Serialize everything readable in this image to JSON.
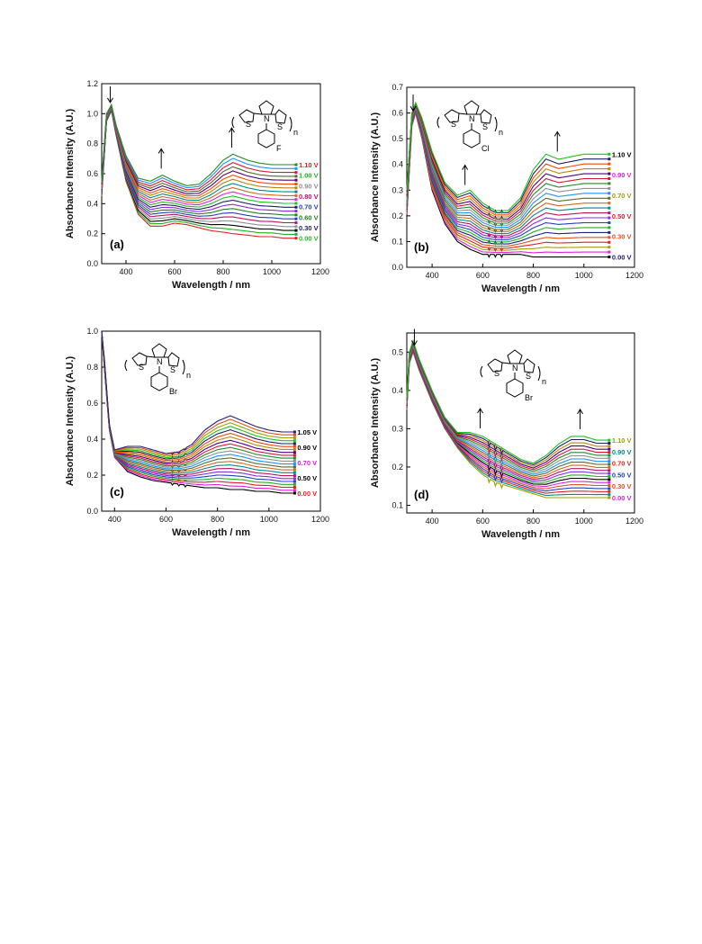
{
  "chart_data": [
    {
      "type": "line",
      "panel_label": "(a)",
      "xlabel": "Wavelength / nm",
      "ylabel": "Absorbance Intensity (A.U.)",
      "xlim": [
        300,
        1200
      ],
      "ylim": [
        0.0,
        1.2
      ],
      "xticks": [
        400,
        600,
        800,
        1000,
        1200
      ],
      "yticks": [
        0.0,
        0.2,
        0.4,
        0.6,
        0.8,
        1.0,
        1.2
      ],
      "grid": false,
      "molecule": {
        "substituent": "F",
        "repeat": "n",
        "atoms": [
          "S",
          "N",
          "S"
        ]
      },
      "voltage_labels": [
        "1.10 V",
        "1.00 V",
        "0.90 V",
        "0.80 V",
        "0.70 V",
        "0.60 V",
        "0.30 V",
        "0.00 V"
      ],
      "voltage_colors": [
        "#e02020",
        "#20b020",
        "#909090",
        "#c01060",
        "#2040c0",
        "#208020",
        "#202060",
        "#20c020"
      ],
      "series_count": 20,
      "series_colors": [
        "#e02020",
        "#20b020",
        "#000000",
        "#909090",
        "#c01060",
        "#2040c0",
        "#208020",
        "#8a2be2",
        "#202060",
        "#20c020",
        "#e020e0",
        "#d2691e",
        "#008b8b",
        "#b8860b",
        "#ff4500",
        "#4b0082",
        "#556b2f",
        "#dc143c",
        "#1e90ff",
        "#228b22"
      ],
      "curve_keypoints": {
        "x": [
          300,
          320,
          340,
          360,
          400,
          450,
          500,
          550,
          600,
          650,
          700,
          750,
          800,
          840,
          900,
          950,
          1000,
          1050,
          1100
        ],
        "y_lowest": [
          0.45,
          0.95,
          1.02,
          0.85,
          0.55,
          0.33,
          0.25,
          0.25,
          0.27,
          0.26,
          0.24,
          0.22,
          0.21,
          0.2,
          0.19,
          0.18,
          0.18,
          0.17,
          0.17
        ],
        "y_highest": [
          0.55,
          1.0,
          1.06,
          0.92,
          0.72,
          0.57,
          0.55,
          0.59,
          0.55,
          0.52,
          0.53,
          0.6,
          0.69,
          0.73,
          0.69,
          0.67,
          0.66,
          0.66,
          0.66
        ]
      },
      "arrows": [
        {
          "x": 335,
          "dir": "down"
        },
        {
          "x": 545,
          "dir": "up"
        },
        {
          "x": 835,
          "dir": "up"
        }
      ]
    },
    {
      "type": "line",
      "panel_label": "(b)",
      "xlabel": "Wavelength / nm",
      "ylabel": "Absorbance Intensity (A.U.)",
      "xlim": [
        300,
        1200
      ],
      "ylim": [
        0.0,
        0.7
      ],
      "xticks": [
        400,
        600,
        800,
        1000,
        1200
      ],
      "yticks": [
        0.0,
        0.1,
        0.2,
        0.3,
        0.4,
        0.5,
        0.6,
        0.7
      ],
      "grid": false,
      "molecule": {
        "substituent": "Cl",
        "repeat": "n",
        "atoms": [
          "S",
          "N",
          "S"
        ]
      },
      "voltage_labels": [
        "1.10 V",
        "0.90 V",
        "0.70 V",
        "0.50 V",
        "0.30 V",
        "0.00 V"
      ],
      "voltage_colors": [
        "#000000",
        "#e020e0",
        "#a0a000",
        "#e02020",
        "#e05020",
        "#202080"
      ],
      "series_count": 22,
      "series_colors": [
        "#000000",
        "#e020e0",
        "#a0a000",
        "#e02020",
        "#e05020",
        "#202080",
        "#20b020",
        "#2040c0",
        "#8a2be2",
        "#c01060",
        "#008b8b",
        "#d2691e",
        "#556b2f",
        "#1e90ff",
        "#909090",
        "#228b22",
        "#dc143c",
        "#4b0082",
        "#b8860b",
        "#ff4500",
        "#202060",
        "#20c020"
      ],
      "curve_keypoints": {
        "x": [
          300,
          320,
          335,
          360,
          400,
          450,
          500,
          550,
          600,
          650,
          700,
          750,
          800,
          850,
          900,
          950,
          1000,
          1050,
          1100
        ],
        "y_lowest": [
          0.2,
          0.55,
          0.6,
          0.5,
          0.3,
          0.17,
          0.1,
          0.07,
          0.05,
          0.05,
          0.05,
          0.05,
          0.04,
          0.04,
          0.04,
          0.04,
          0.04,
          0.04,
          0.04
        ],
        "y_highest": [
          0.3,
          0.6,
          0.64,
          0.58,
          0.45,
          0.33,
          0.28,
          0.3,
          0.25,
          0.22,
          0.22,
          0.27,
          0.38,
          0.44,
          0.42,
          0.43,
          0.44,
          0.44,
          0.44
        ]
      },
      "arrows": [
        {
          "x": 325,
          "dir": "down"
        },
        {
          "x": 530,
          "dir": "up"
        },
        {
          "x": 895,
          "dir": "up"
        }
      ]
    },
    {
      "type": "line",
      "panel_label": "(c)",
      "xlabel": "Wavelength / nm",
      "ylabel": "Absorbance Intensity (A.U.)",
      "xlim": [
        350,
        1200
      ],
      "ylim": [
        0.0,
        1.0
      ],
      "xticks": [
        400,
        600,
        800,
        1000,
        1200
      ],
      "yticks": [
        0.0,
        0.2,
        0.4,
        0.6,
        0.8,
        1.0
      ],
      "grid": false,
      "molecule": {
        "substituent": "Br",
        "repeat": "n",
        "atoms": [
          "S",
          "N",
          "S"
        ]
      },
      "voltage_labels": [
        "1.05 V",
        "0.90 V",
        "0.70 V",
        "0.50 V",
        "0.00 V"
      ],
      "voltage_colors": [
        "#000000",
        "#000000",
        "#e020e0",
        "#000000",
        "#e02020"
      ],
      "series_count": 22,
      "series_colors": [
        "#000000",
        "#e020e0",
        "#e02020",
        "#20b020",
        "#2040c0",
        "#8a2be2",
        "#c01060",
        "#008b8b",
        "#d2691e",
        "#556b2f",
        "#1e90ff",
        "#909090",
        "#228b22",
        "#dc143c",
        "#4b0082",
        "#b8860b",
        "#ff4500",
        "#202060",
        "#20c020",
        "#a0a000",
        "#e05020",
        "#202080"
      ],
      "curve_keypoints": {
        "x": [
          350,
          360,
          380,
          400,
          450,
          500,
          550,
          600,
          650,
          700,
          750,
          800,
          850,
          900,
          950,
          1000,
          1050,
          1100
        ],
        "y_lowest": [
          1.0,
          0.8,
          0.45,
          0.3,
          0.22,
          0.19,
          0.17,
          0.16,
          0.15,
          0.14,
          0.13,
          0.13,
          0.12,
          0.12,
          0.11,
          0.11,
          0.1,
          0.1
        ],
        "y_highest": [
          1.0,
          0.85,
          0.48,
          0.34,
          0.36,
          0.36,
          0.34,
          0.32,
          0.33,
          0.37,
          0.45,
          0.5,
          0.53,
          0.5,
          0.47,
          0.45,
          0.44,
          0.44
        ]
      },
      "arrows": []
    },
    {
      "type": "line",
      "panel_label": "(d)",
      "xlabel": "Wavelength / nm",
      "ylabel": "Absorbance Intensity (A.U.)",
      "xlim": [
        300,
        1200
      ],
      "ylim": [
        0.08,
        0.55
      ],
      "xticks": [
        400,
        600,
        800,
        1000,
        1200
      ],
      "yticks": [
        0.1,
        0.2,
        0.3,
        0.4,
        0.5
      ],
      "grid": false,
      "molecule": {
        "substituent": "Br",
        "repeat": "n",
        "atoms": [
          "S",
          "N",
          "S"
        ]
      },
      "voltage_labels": [
        "1.10 V",
        "0.90 V",
        "0.70 V",
        "0.50 V",
        "0.30 V",
        "0.00 V"
      ],
      "voltage_colors": [
        "#a0a000",
        "#008b8b",
        "#e02020",
        "#2040c0",
        "#e05020",
        "#e020e0"
      ],
      "series_count": 20,
      "series_colors": [
        "#a0a000",
        "#008b8b",
        "#e02020",
        "#2040c0",
        "#e05020",
        "#e020e0",
        "#000000",
        "#20b020",
        "#8a2be2",
        "#c01060",
        "#d2691e",
        "#556b2f",
        "#1e90ff",
        "#909090",
        "#228b22",
        "#dc143c",
        "#4b0082",
        "#b8860b",
        "#202060",
        "#20c020"
      ],
      "curve_keypoints": {
        "x": [
          300,
          310,
          325,
          350,
          400,
          450,
          500,
          550,
          600,
          650,
          700,
          750,
          800,
          850,
          900,
          950,
          1000,
          1050,
          1100
        ],
        "y_lowest": [
          0.35,
          0.47,
          0.5,
          0.45,
          0.37,
          0.3,
          0.25,
          0.21,
          0.18,
          0.16,
          0.15,
          0.14,
          0.13,
          0.12,
          0.12,
          0.12,
          0.12,
          0.12,
          0.12
        ],
        "y_highest": [
          0.38,
          0.5,
          0.53,
          0.48,
          0.4,
          0.33,
          0.29,
          0.29,
          0.28,
          0.26,
          0.24,
          0.22,
          0.21,
          0.23,
          0.26,
          0.28,
          0.28,
          0.27,
          0.27
        ]
      },
      "arrows": [
        {
          "x": 330,
          "dir": "down"
        },
        {
          "x": 590,
          "dir": "up"
        },
        {
          "x": 985,
          "dir": "up"
        }
      ]
    }
  ]
}
